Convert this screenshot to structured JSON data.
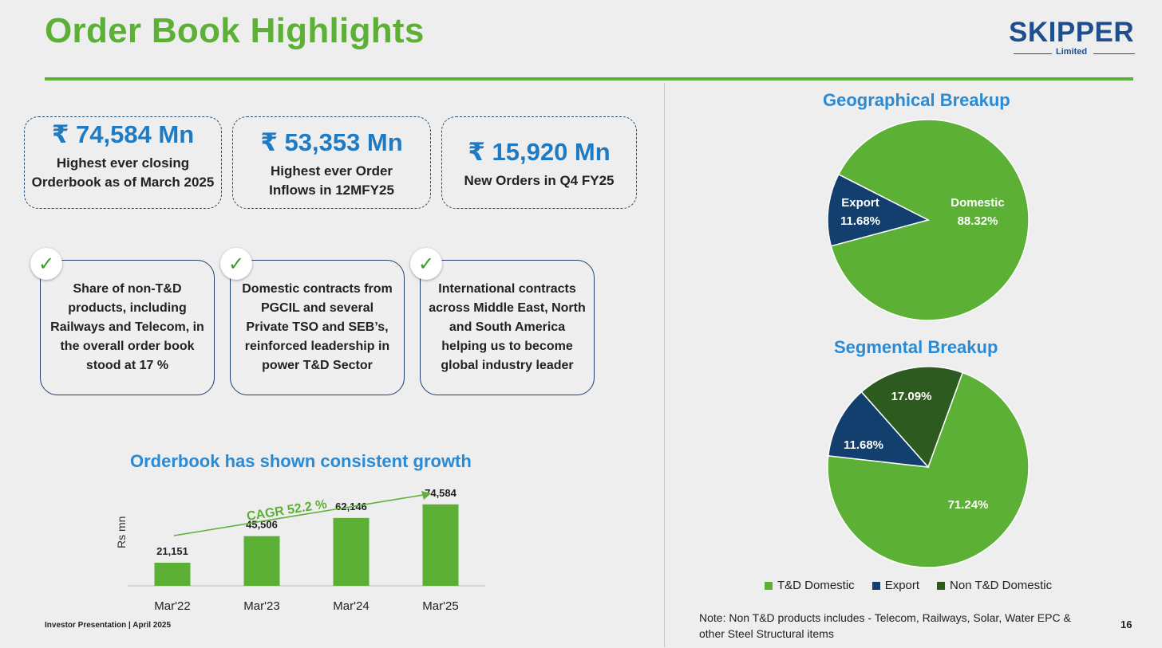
{
  "header": {
    "title": "Order Book Highlights",
    "logo_wordmark": "SKIPPER",
    "logo_sub": "Limited"
  },
  "kpis": [
    {
      "value": "₹ 74,584 Mn",
      "desc": "Highest ever closing Orderbook as of March 2025"
    },
    {
      "value": "₹ 53,353 Mn",
      "desc": "Highest ever Order Inflows in 12MFY25"
    },
    {
      "value": "₹ 15,920 Mn",
      "desc": "New Orders in Q4 FY25"
    }
  ],
  "cards": [
    {
      "text": "Share of non-T&D products, including Railways and Telecom, in the overall order book stood at 17 %"
    },
    {
      "text": "Domestic contracts from PGCIL and several Private TSO and SEB’s, reinforced leadership in power T&D Sector"
    },
    {
      "text": "International contracts across Middle East, North and South America helping us to become global industry leader"
    }
  ],
  "colors": {
    "brand_green": "#5bb035",
    "title_blue": "#2a8ad4",
    "navy": "#123f6e",
    "dark_green": "#2d5a1f"
  },
  "chart_data": [
    {
      "type": "bar",
      "title": "Orderbook has shown consistent growth",
      "ylabel": "Rs mn",
      "categories": [
        "Mar'22",
        "Mar'23",
        "Mar'24",
        "Mar'25"
      ],
      "values": [
        21151,
        45506,
        62146,
        74584
      ],
      "value_labels": [
        "21,151",
        "45,506",
        "62,146",
        "74,584"
      ],
      "annotation": "CAGR 52.2 %",
      "ylim": [
        0,
        100000
      ],
      "color": "#5bb035"
    },
    {
      "type": "pie",
      "title": "Geographical Breakup",
      "slices": [
        {
          "name": "Domestic",
          "value": 88.32,
          "label": "88.32%",
          "color": "#5bb035"
        },
        {
          "name": "Export",
          "value": 11.68,
          "label": "11.68%",
          "color": "#123f6e"
        }
      ]
    },
    {
      "type": "pie",
      "title": "Segmental Breakup",
      "slices": [
        {
          "name": "T&D Domestic",
          "value": 71.24,
          "label": "71.24%",
          "color": "#5bb035"
        },
        {
          "name": "Export",
          "value": 11.68,
          "label": "11.68%",
          "color": "#123f6e"
        },
        {
          "name": "Non T&D Domestic",
          "value": 17.09,
          "label": "17.09%",
          "color": "#2d5a1f"
        }
      ],
      "legend": [
        {
          "label": "T&D Domestic",
          "color": "#5bb035"
        },
        {
          "label": "Export",
          "color": "#123f6e"
        },
        {
          "label": "Non T&D Domestic",
          "color": "#2d5a1f"
        }
      ],
      "legend_position": "bottom"
    }
  ],
  "footer": {
    "left": "Investor Presentation | April 2025",
    "page": "16",
    "note": "Note: Non T&D  products includes  - Telecom, Railways, Solar, Water EPC & other Steel Structural items"
  }
}
